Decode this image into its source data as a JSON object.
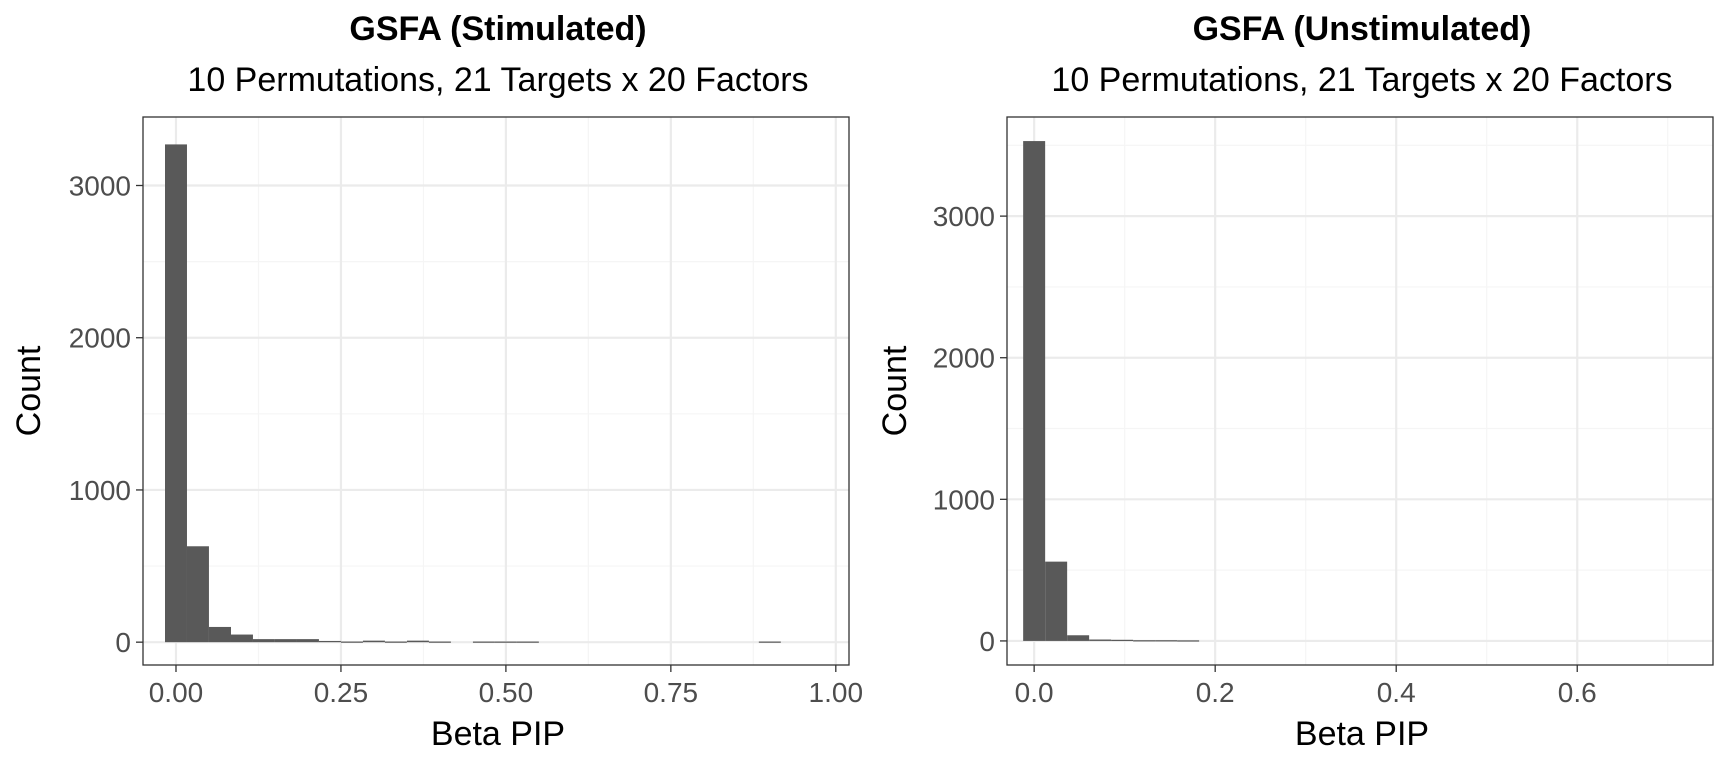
{
  "chart_data": [
    {
      "type": "bar",
      "title": "GSFA (Stimulated)",
      "subtitle": "10 Permutations, 21 Targets x 20 Factors",
      "xlabel": "Beta PIP",
      "ylabel": "Count",
      "xlim": [
        -0.05,
        1.02
      ],
      "ylim": [
        -150,
        3450
      ],
      "x_ticks": [
        0.0,
        0.25,
        0.5,
        0.75,
        1.0
      ],
      "x_tick_labels": [
        "0.00",
        "0.25",
        "0.50",
        "0.75",
        "1.00"
      ],
      "y_ticks": [
        0,
        1000,
        2000,
        3000
      ],
      "y_tick_labels": [
        "0",
        "1000",
        "2000",
        "3000"
      ],
      "grid": true,
      "bar_color": "#595959",
      "bin_width": 0.0333,
      "bin_centers": [
        0.0,
        0.0333,
        0.0667,
        0.1,
        0.1333,
        0.1667,
        0.2,
        0.2333,
        0.2667,
        0.3,
        0.3333,
        0.3667,
        0.4,
        0.4333,
        0.4667,
        0.5,
        0.5333,
        0.5667,
        0.6,
        0.6333,
        0.6667,
        0.7,
        0.7333,
        0.7667,
        0.8,
        0.8333,
        0.8667,
        0.9,
        0.9333,
        0.9667
      ],
      "values": [
        3270,
        630,
        100,
        50,
        20,
        20,
        20,
        8,
        4,
        10,
        4,
        10,
        4,
        0,
        4,
        4,
        4,
        0,
        0,
        0,
        0,
        0,
        0,
        0,
        0,
        0,
        0,
        4,
        0,
        0
      ]
    },
    {
      "type": "bar",
      "title": "GSFA (Unstimulated)",
      "subtitle": "10 Permutations, 21 Targets x 20 Factors",
      "xlabel": "Beta PIP",
      "ylabel": "Count",
      "xlim": [
        -0.03,
        0.75
      ],
      "ylim": [
        -170,
        3700
      ],
      "x_ticks": [
        0.0,
        0.2,
        0.4,
        0.6
      ],
      "x_tick_labels": [
        "0.0",
        "0.2",
        "0.4",
        "0.6"
      ],
      "y_ticks": [
        0,
        1000,
        2000,
        3000
      ],
      "y_tick_labels": [
        "0",
        "1000",
        "2000",
        "3000"
      ],
      "grid": true,
      "bar_color": "#595959",
      "bin_width": 0.0243,
      "bin_centers": [
        0.0,
        0.0243,
        0.0486,
        0.0729,
        0.0972,
        0.1215,
        0.1458,
        0.1701
      ],
      "values": [
        3530,
        560,
        40,
        10,
        8,
        5,
        5,
        4
      ]
    }
  ]
}
